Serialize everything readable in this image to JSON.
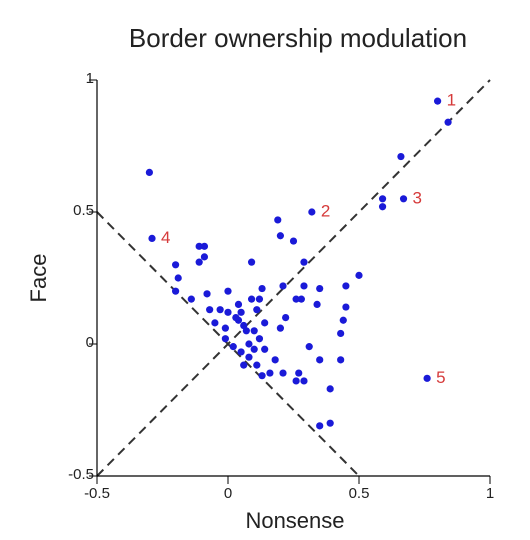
{
  "chart_data": {
    "type": "scatter",
    "title": "Border ownership modulation",
    "x_label": "Nonsense",
    "y_label": "Face",
    "color": "#1a1ad8",
    "annotation_color": "#d63a3a",
    "xlim": [
      -0.5,
      1.0
    ],
    "ylim": [
      -0.5,
      1.0
    ],
    "xticks": [
      -0.5,
      0.0,
      0.5,
      1.0
    ],
    "yticks": [
      -0.5,
      0.0,
      0.5,
      1.0
    ],
    "x": [
      0.8,
      0.84,
      0.66,
      -0.3,
      0.67,
      0.59,
      0.59,
      0.32,
      0.19,
      -0.29,
      0.2,
      -0.11,
      -0.09,
      0.25,
      -0.09,
      -0.11,
      -0.2,
      0.09,
      0.29,
      -0.19,
      0.5,
      0.21,
      0.29,
      0.35,
      0.45,
      -0.2,
      -0.14,
      -0.08,
      0.0,
      0.13,
      0.26,
      0.28,
      0.09,
      0.12,
      0.34,
      0.45,
      -0.07,
      -0.03,
      0.05,
      0.11,
      0.22,
      0.04,
      0.14,
      0.44,
      -0.05,
      -0.01,
      0.2,
      0.07,
      0.43,
      -0.01,
      0.02,
      0.05,
      0.14,
      0.31,
      0.08,
      0.18,
      0.35,
      0.11,
      0.06,
      0.16,
      0.21,
      0.27,
      0.43,
      0.26,
      0.29,
      0.13,
      0.39,
      0.76,
      0.35,
      0.39,
      0.03,
      0.06,
      0.1,
      0.0,
      0.08,
      0.12,
      0.04,
      0.1
    ],
    "y": [
      0.92,
      0.84,
      0.71,
      0.65,
      0.55,
      0.55,
      0.52,
      0.5,
      0.47,
      0.4,
      0.41,
      0.37,
      0.37,
      0.39,
      0.33,
      0.31,
      0.3,
      0.31,
      0.31,
      0.25,
      0.26,
      0.22,
      0.22,
      0.21,
      0.22,
      0.2,
      0.17,
      0.19,
      0.2,
      0.21,
      0.17,
      0.17,
      0.17,
      0.17,
      0.15,
      0.14,
      0.13,
      0.13,
      0.12,
      0.13,
      0.1,
      0.09,
      0.08,
      0.09,
      0.08,
      0.06,
      0.06,
      0.05,
      0.04,
      0.02,
      -0.01,
      -0.03,
      -0.02,
      -0.01,
      -0.05,
      -0.06,
      -0.06,
      -0.08,
      -0.08,
      -0.11,
      -0.11,
      -0.11,
      -0.06,
      -0.14,
      -0.14,
      -0.12,
      -0.17,
      -0.13,
      -0.31,
      -0.3,
      0.1,
      0.07,
      0.05,
      0.12,
      0.0,
      0.02,
      0.15,
      -0.02
    ],
    "annotations": [
      {
        "text": "1",
        "x": 0.8,
        "y": 0.92
      },
      {
        "text": "2",
        "x": 0.32,
        "y": 0.5
      },
      {
        "text": "3",
        "x": 0.67,
        "y": 0.55
      },
      {
        "text": "4",
        "x": -0.29,
        "y": 0.4
      },
      {
        "text": "5",
        "x": 0.76,
        "y": -0.13
      }
    ]
  }
}
